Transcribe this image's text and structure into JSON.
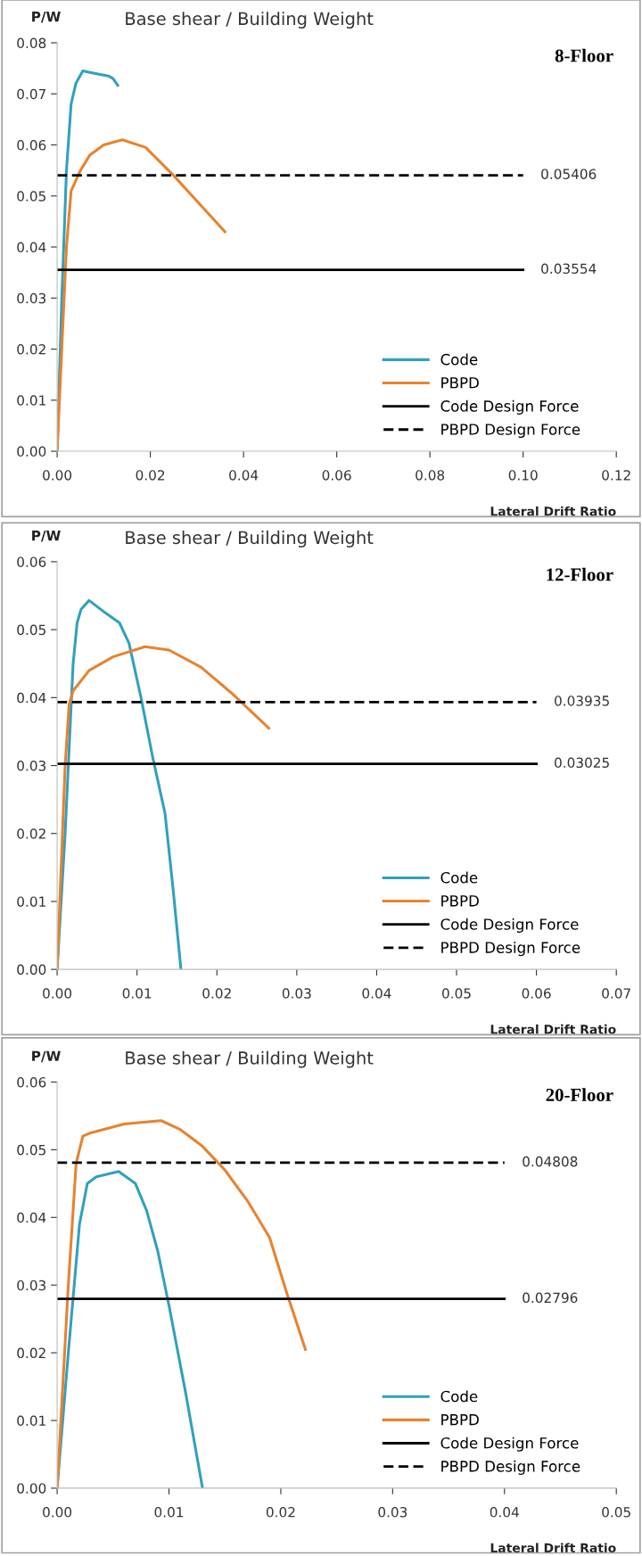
{
  "chart_data": [
    {
      "type": "line",
      "title": "Base shear / Building Weight",
      "subtitle": "8-Floor",
      "ylabel": "P/W",
      "xlabel": "Lateral Drift Ratio",
      "xlim": [
        0,
        0.12
      ],
      "xticks": [
        {
          "value": 0,
          "label": "0.00"
        },
        {
          "value": 0.02,
          "label": "0.02"
        },
        {
          "value": 0.04,
          "label": "0.04"
        },
        {
          "value": 0.06,
          "label": "0.06"
        },
        {
          "value": 0.08,
          "label": "0.08"
        },
        {
          "value": 0.1,
          "label": "0.10"
        },
        {
          "value": 0.12,
          "label": "0.12"
        }
      ],
      "ylim": [
        0,
        0.08
      ],
      "yticks": [
        {
          "value": 0,
          "label": "0.00"
        },
        {
          "value": 0.01,
          "label": "0.01"
        },
        {
          "value": 0.02,
          "label": "0.02"
        },
        {
          "value": 0.03,
          "label": "0.03"
        },
        {
          "value": 0.04,
          "label": "0.04"
        },
        {
          "value": 0.05,
          "label": "0.05"
        },
        {
          "value": 0.06,
          "label": "0.06"
        },
        {
          "value": 0.07,
          "label": "0.07"
        },
        {
          "value": 0.08,
          "label": "0.08"
        }
      ],
      "grid": false,
      "legend": "bottom right",
      "series": [
        {
          "name": "Code",
          "color": "#31a0bf",
          "line_style": "solid",
          "x": [
            0,
            0.001,
            0.002,
            0.003,
            0.004,
            0.0055,
            0.008,
            0.011,
            0.012,
            0.013
          ],
          "values": [
            0,
            0.03,
            0.055,
            0.068,
            0.072,
            0.0745,
            0.074,
            0.0735,
            0.073,
            0.0717
          ]
        },
        {
          "name": "PBPD",
          "color": "#e8822e",
          "line_style": "solid",
          "x": [
            0,
            0.001,
            0.002,
            0.003,
            0.005,
            0.007,
            0.01,
            0.014,
            0.019,
            0.025,
            0.03,
            0.036
          ],
          "values": [
            0,
            0.02,
            0.04,
            0.051,
            0.055,
            0.058,
            0.06,
            0.061,
            0.0595,
            0.054,
            0.049,
            0.043
          ]
        },
        {
          "name": "Code Design Force",
          "color": "#000000",
          "line_style": "solid",
          "x": [
            0,
            0.1
          ],
          "values": [
            0.03554,
            0.03554
          ]
        },
        {
          "name": "PBPD Design Force",
          "color": "#000000",
          "line_style": "dashed",
          "x": [
            0,
            0.1
          ],
          "values": [
            0.05406,
            0.05406
          ]
        }
      ],
      "annotations": [
        {
          "text": "0.05406",
          "x": 0.1,
          "y": 0.05406
        },
        {
          "text": "0.03554",
          "x": 0.1,
          "y": 0.03554
        }
      ]
    },
    {
      "type": "line",
      "title": "Base shear / Building Weight",
      "subtitle": "12-Floor",
      "ylabel": "P/W",
      "xlabel": "Lateral Drift Ratio",
      "xlim": [
        0,
        0.07
      ],
      "xticks": [
        {
          "value": 0,
          "label": "0.00"
        },
        0.01,
        0.02,
        0.03,
        0.04,
        0.05,
        0.06,
        0.07
      ],
      "ylim": [
        0,
        0.06
      ],
      "yticks": [
        {
          "value": 0,
          "label": "0.00"
        },
        0.01,
        0.02,
        0.03,
        0.04,
        0.05,
        0.06
      ],
      "grid": false,
      "legend": "bottom right",
      "series": [
        {
          "name": "Code",
          "color": "#31a0bf",
          "line_style": "solid",
          "x": [
            0,
            0.001,
            0.002,
            0.0025,
            0.003,
            0.004,
            0.006,
            0.0078,
            0.009,
            0.0105,
            0.012,
            0.0135,
            0.0145,
            0.0155
          ],
          "values": [
            0,
            0.02,
            0.045,
            0.051,
            0.053,
            0.0543,
            0.0525,
            0.051,
            0.048,
            0.04,
            0.031,
            0.023,
            0.012,
            0
          ]
        },
        {
          "name": "PBPD",
          "color": "#e8822e",
          "line_style": "solid",
          "x": [
            0,
            0.001,
            0.0015,
            0.002,
            0.004,
            0.007,
            0.011,
            0.014,
            0.018,
            0.022,
            0.0265
          ],
          "values": [
            0,
            0.03,
            0.039,
            0.041,
            0.044,
            0.046,
            0.0475,
            0.047,
            0.0445,
            0.0405,
            0.0355
          ]
        },
        {
          "name": "Code Design Force",
          "color": "#000000",
          "line_style": "solid",
          "x": [
            0,
            0.06
          ],
          "values": [
            0.03025,
            0.03025
          ]
        },
        {
          "name": "PBPD Design Force",
          "color": "#000000",
          "line_style": "dashed",
          "x": [
            0,
            0.06
          ],
          "values": [
            0.03935,
            0.03935
          ]
        }
      ],
      "annotations": [
        {
          "text": "0.03935",
          "x": 0.06,
          "y": 0.03935
        },
        {
          "text": "0.03025",
          "x": 0.06,
          "y": 0.03025
        }
      ]
    },
    {
      "type": "line",
      "title": "Base shear / Building Weight",
      "subtitle": "20-Floor",
      "ylabel": "P/W",
      "xlabel": "Lateral Drift Ratio",
      "xlim": [
        0,
        0.05
      ],
      "xticks": [
        {
          "value": 0,
          "label": "0.00"
        },
        0.01,
        0.02,
        0.03,
        0.04,
        0.05
      ],
      "ylim": [
        0,
        0.06
      ],
      "yticks": [
        {
          "value": 0,
          "label": "0.00"
        },
        0.01,
        0.02,
        0.03,
        0.04,
        0.05,
        0.06
      ],
      "grid": false,
      "legend": "bottom right",
      "series": [
        {
          "name": "Code",
          "color": "#31a0bf",
          "line_style": "solid",
          "x": [
            0,
            0.001,
            0.002,
            0.0027,
            0.0035,
            0.0055,
            0.007,
            0.008,
            0.009,
            0.01,
            0.0115,
            0.013
          ],
          "values": [
            0,
            0.02,
            0.039,
            0.045,
            0.046,
            0.0468,
            0.045,
            0.041,
            0.035,
            0.027,
            0.014,
            0
          ]
        },
        {
          "name": "PBPD",
          "color": "#e8822e",
          "line_style": "solid",
          "x": [
            0,
            0.001,
            0.0017,
            0.0023,
            0.003,
            0.006,
            0.0093,
            0.011,
            0.013,
            0.015,
            0.017,
            0.019,
            0.0205,
            0.0222
          ],
          "values": [
            0,
            0.03,
            0.048,
            0.052,
            0.0525,
            0.0538,
            0.0543,
            0.053,
            0.0505,
            0.047,
            0.0425,
            0.037,
            0.029,
            0.0205
          ]
        },
        {
          "name": "Code Design Force",
          "color": "#000000",
          "line_style": "solid",
          "x": [
            0,
            0.04
          ],
          "values": [
            0.02796,
            0.02796
          ]
        },
        {
          "name": "PBPD Design Force",
          "color": "#000000",
          "line_style": "dashed",
          "x": [
            0,
            0.04
          ],
          "values": [
            0.04808,
            0.04808
          ]
        }
      ],
      "annotations": [
        {
          "text": "0.04808",
          "x": 0.04,
          "y": 0.04808
        },
        {
          "text": "0.02796",
          "x": 0.04,
          "y": 0.02796
        }
      ]
    }
  ]
}
